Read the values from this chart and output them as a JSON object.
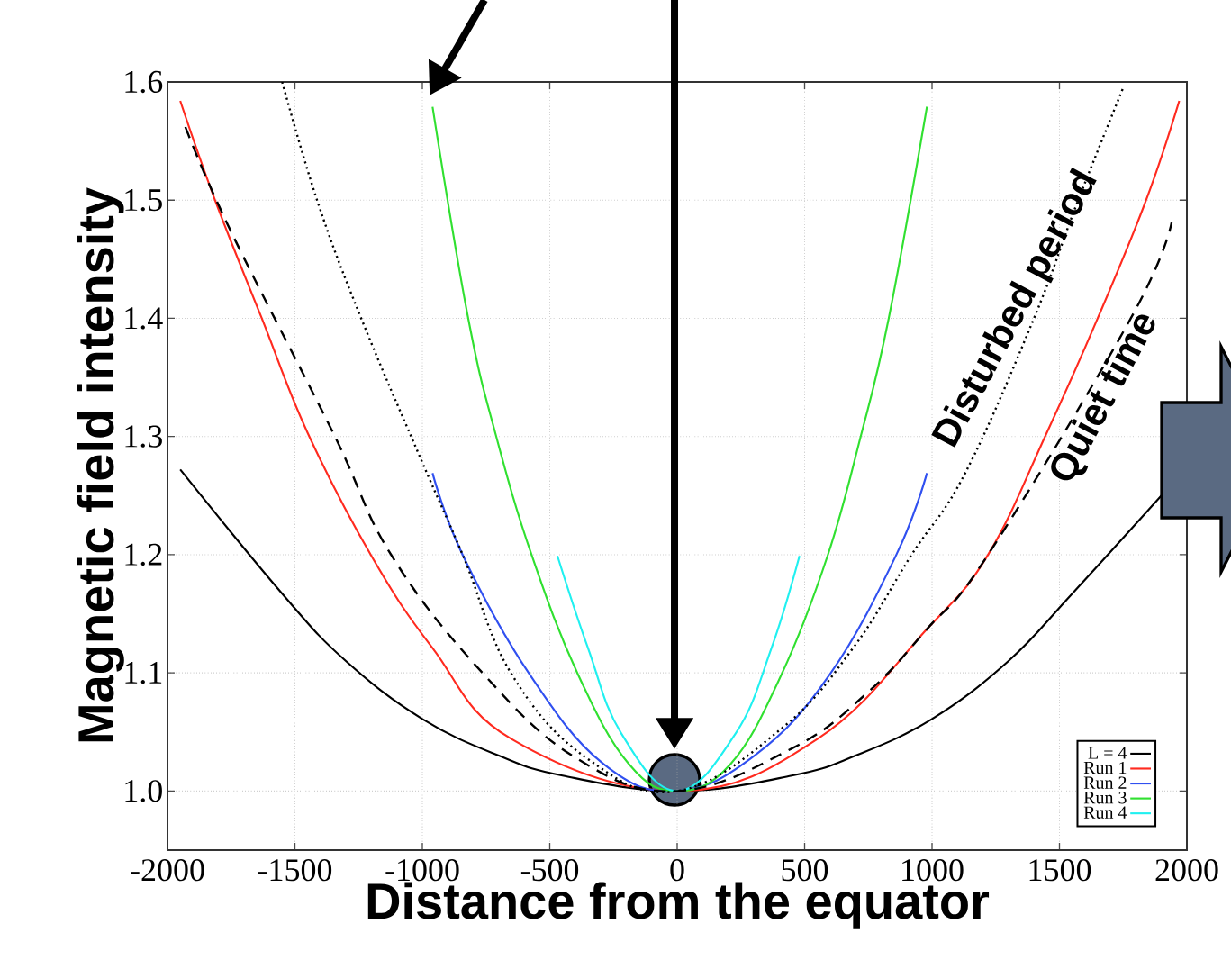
{
  "chart_data": {
    "type": "line",
    "xlabel": "Distance from the equator",
    "ylabel": "Magnetic field intensity",
    "xlim": [
      -2000,
      2000
    ],
    "ylim": [
      0.95,
      1.6
    ],
    "xticks": [
      -2000,
      -1500,
      -1000,
      -500,
      0,
      500,
      1000,
      1500,
      2000
    ],
    "yticks": [
      {
        "value": 1.0,
        "label": "1.0"
      },
      1.1,
      1.2,
      1.3,
      1.4,
      1.5,
      1.6
    ],
    "grid": true,
    "legend": "bottom right",
    "marker": "none",
    "series": [
      {
        "name": "L = 4",
        "color": "#000000",
        "line_style": "solid",
        "x": [
          -1950,
          -1550,
          -1300,
          -1000,
          -700,
          -450,
          0,
          450,
          700,
          1000,
          1300,
          1550,
          1900
        ],
        "values": [
          1.272,
          1.167,
          1.11,
          1.061,
          1.03,
          1.013,
          1.0,
          1.013,
          1.03,
          1.061,
          1.11,
          1.167,
          1.25
        ]
      },
      {
        "name": "Run 1",
        "color": "#ff2a1f",
        "line_style": "solid",
        "x": [
          -1950,
          -1810,
          -1630,
          -1450,
          -1200,
          -960,
          -650,
          0,
          550,
          980,
          1220,
          1450,
          1650,
          1840,
          1970
        ],
        "values": [
          1.584,
          1.498,
          1.4,
          1.303,
          1.199,
          1.121,
          1.044,
          1.0,
          1.044,
          1.137,
          1.2,
          1.303,
          1.4,
          1.5,
          1.584
        ]
      },
      {
        "name": "Run 2",
        "color": "#3050f0",
        "line_style": "solid",
        "x": [
          -960,
          -840,
          -580,
          -290,
          0,
          310,
          600,
          860,
          980
        ],
        "values": [
          1.269,
          1.199,
          1.099,
          1.023,
          1.0,
          1.031,
          1.099,
          1.2,
          1.269
        ]
      },
      {
        "name": "Run 3",
        "color": "#30e030",
        "line_style": "solid",
        "x": [
          -960,
          -820,
          -710,
          -570,
          -390,
          -190,
          0,
          210,
          410,
          590,
          720,
          830,
          980
        ],
        "values": [
          1.579,
          1.4,
          1.3,
          1.199,
          1.099,
          1.023,
          1.0,
          1.023,
          1.099,
          1.199,
          1.3,
          1.4,
          1.579
        ]
      },
      {
        "name": "Run 4",
        "color": "#20f0f0",
        "line_style": "solid",
        "x": [
          -470,
          -350,
          -220,
          0,
          230,
          370,
          480
        ],
        "values": [
          1.199,
          1.121,
          1.049,
          1.0,
          1.049,
          1.121,
          1.199
        ]
      },
      {
        "name": "Disturbed period",
        "color": "#000000",
        "line_style": "dotted",
        "x": [
          -1550,
          -1410,
          -1240,
          -1000,
          -840,
          -650,
          -350,
          0,
          410,
          690,
          920,
          1130,
          1400,
          1570,
          1750
        ],
        "values": [
          1.6,
          1.498,
          1.4,
          1.278,
          1.199,
          1.099,
          1.027,
          1.0,
          1.053,
          1.121,
          1.2,
          1.269,
          1.4,
          1.498,
          1.595
        ]
      },
      {
        "name": "Quiet time",
        "color": "#000000",
        "line_style": "dashed",
        "x": [
          -1930,
          -1750,
          -1350,
          -1120,
          -760,
          -390,
          0,
          450,
          740,
          980,
          1220,
          1780,
          1940
        ],
        "values": [
          1.562,
          1.473,
          1.303,
          1.199,
          1.099,
          1.027,
          1.0,
          1.036,
          1.082,
          1.137,
          1.2,
          1.4,
          1.481
        ]
      }
    ]
  }
}
